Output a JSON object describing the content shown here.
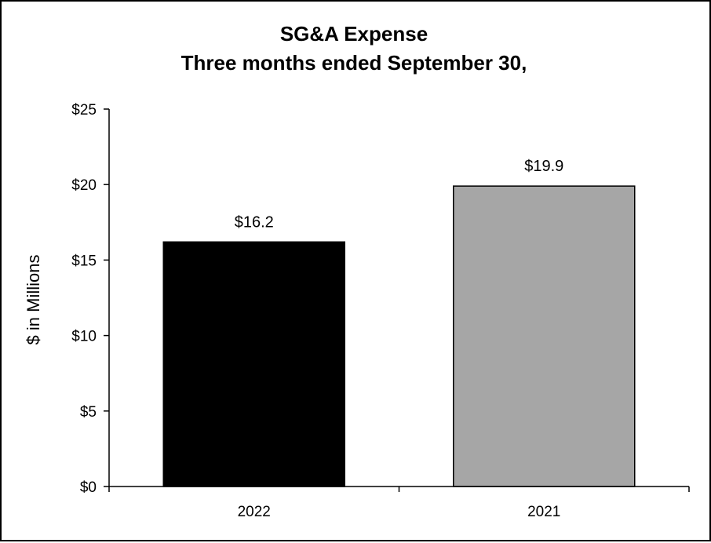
{
  "chart_data": {
    "type": "bar",
    "title": "SG&A Expense",
    "subtitle": "Three months ended September 30,",
    "xlabel": "",
    "ylabel": "$ in Millions",
    "categories": [
      "2022",
      "2021"
    ],
    "values": [
      16.2,
      19.9
    ],
    "data_labels": [
      "$16.2",
      "$19.9"
    ],
    "ylim": [
      0,
      25
    ],
    "yticks": [
      0,
      5,
      10,
      15,
      20,
      25
    ],
    "ytick_labels": [
      "$0",
      "$5",
      "$10",
      "$15",
      "$20",
      "$25"
    ],
    "bar_colors": [
      "#000000",
      "#a6a6a6"
    ],
    "bar_edge_color": "#000000",
    "grid": false,
    "legend": "none"
  }
}
